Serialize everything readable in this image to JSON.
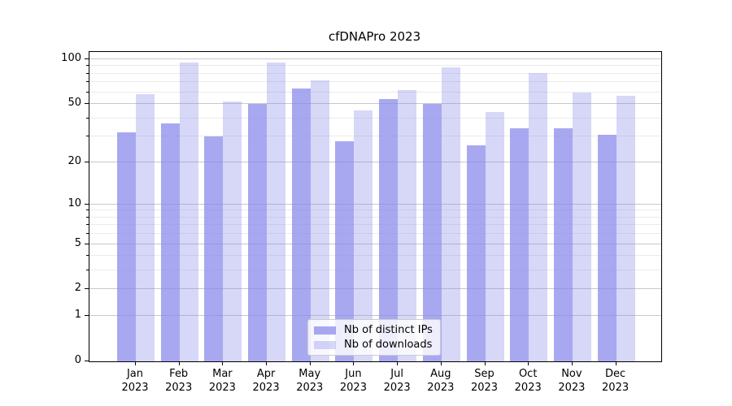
{
  "title": "cfDNAPro 2023",
  "chart_data": {
    "type": "bar",
    "title": "cfDNAPro 2023",
    "y_scale": "log1p",
    "ylim": [
      0,
      112
    ],
    "yticks": [
      100,
      50,
      20,
      10,
      5,
      2,
      1,
      0
    ],
    "minor_gridlines": [
      3,
      4,
      6,
      7,
      8,
      9,
      30,
      40,
      60,
      70,
      80,
      90
    ],
    "months": [
      "Jan",
      "Feb",
      "Mar",
      "Apr",
      "May",
      "Jun",
      "Jul",
      "Aug",
      "Sep",
      "Oct",
      "Nov",
      "Dec"
    ],
    "year": "2023",
    "series": [
      {
        "name": "Nb of distinct IPs",
        "values": [
          32,
          37,
          30,
          50,
          64,
          28,
          54,
          50,
          26,
          34,
          34,
          31
        ]
      },
      {
        "name": "Nb of downloads",
        "values": [
          58,
          95,
          52,
          95,
          72,
          45,
          62,
          88,
          44,
          81,
          60,
          57
        ]
      }
    ],
    "colors": {
      "bar_base_rgb": "134,134,235",
      "series_alpha": [
        0.72,
        0.33
      ],
      "grid_major": "#c8c8c8",
      "grid_minor": "#ebebeb",
      "axis": "#000000",
      "legend_border": "#cccccc"
    },
    "legend_position": "lower center"
  }
}
